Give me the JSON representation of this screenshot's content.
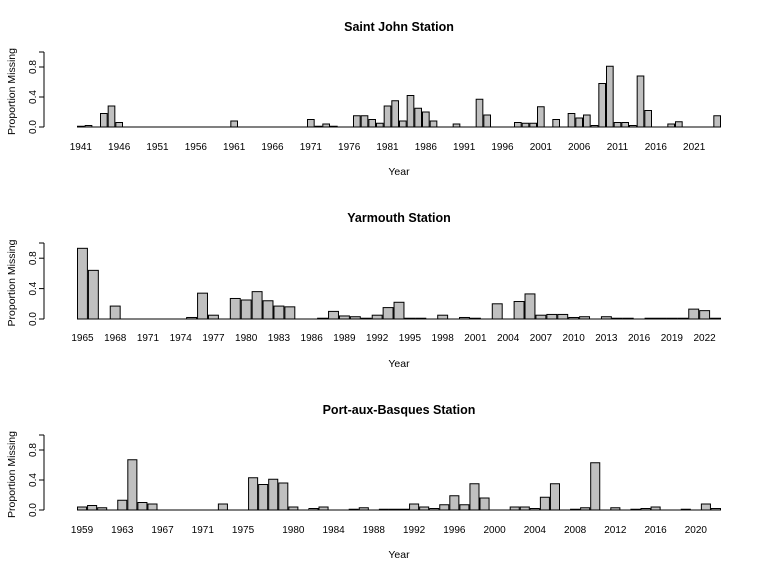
{
  "chart_data": [
    {
      "type": "bar",
      "title": "Saint John Station",
      "xlabel": "Year",
      "ylabel": "Proportion Missing",
      "ylim": [
        0,
        1
      ],
      "yticks": [
        "0.0",
        "0.4",
        "0.8"
      ],
      "ytick_values": [
        0,
        0.4,
        0.8
      ],
      "xtick_labels": [
        "1941",
        "1946",
        "1951",
        "1956",
        "1961",
        "1966",
        "1971",
        "1976",
        "1981",
        "1986",
        "1991",
        "1996",
        "2001",
        "2006",
        "2011",
        "2016",
        "2021"
      ],
      "start_year": 1941,
      "values": [
        0.01,
        0.02,
        0.0,
        0.18,
        0.28,
        0.06,
        0.0,
        0.0,
        0.0,
        0.0,
        0.0,
        0.0,
        0.0,
        0.0,
        0.0,
        0.0,
        0.0,
        0.0,
        0.0,
        0.0,
        0.08,
        0.0,
        0.0,
        0.0,
        0.0,
        0.0,
        0.0,
        0.0,
        0.0,
        0.0,
        0.1,
        0.01,
        0.04,
        0.01,
        0.0,
        0.0,
        0.15,
        0.15,
        0.1,
        0.05,
        0.28,
        0.35,
        0.08,
        0.42,
        0.25,
        0.2,
        0.08,
        0.0,
        0.0,
        0.04,
        0.0,
        0.0,
        0.37,
        0.16,
        0.0,
        0.0,
        0.0,
        0.06,
        0.05,
        0.05,
        0.27,
        0.0,
        0.1,
        0.0,
        0.18,
        0.12,
        0.16,
        0.02,
        0.58,
        0.81,
        0.06,
        0.06,
        0.02,
        0.68,
        0.22,
        0.0,
        0.0,
        0.04,
        0.07,
        0.0,
        0.0,
        0.0,
        0.0,
        0.15
      ]
    },
    {
      "type": "bar",
      "title": "Yarmouth Station",
      "xlabel": "Year",
      "ylabel": "Proportion Missing",
      "ylim": [
        0,
        1
      ],
      "yticks": [
        "0.0",
        "0.4",
        "0.8"
      ],
      "ytick_values": [
        0,
        0.4,
        0.8
      ],
      "xtick_labels": [
        "1965",
        "1968",
        "1971",
        "1974",
        "1977",
        "1980",
        "1983",
        "1986",
        "1989",
        "1992",
        "1995",
        "1998",
        "2001",
        "2004",
        "2007",
        "2010",
        "2013",
        "2016",
        "2019",
        "2022"
      ],
      "start_year": 1965,
      "values": [
        0.93,
        0.64,
        0.0,
        0.17,
        0.0,
        0.0,
        0.0,
        0.0,
        0.0,
        0.0,
        0.02,
        0.34,
        0.05,
        0.0,
        0.27,
        0.25,
        0.36,
        0.24,
        0.17,
        0.16,
        0.0,
        0.0,
        0.01,
        0.1,
        0.04,
        0.03,
        0.01,
        0.05,
        0.15,
        0.22,
        0.01,
        0.01,
        0.0,
        0.05,
        0.0,
        0.02,
        0.01,
        0.0,
        0.2,
        0.0,
        0.23,
        0.33,
        0.05,
        0.06,
        0.06,
        0.02,
        0.03,
        0.0,
        0.03,
        0.01,
        0.01,
        0.0,
        0.01,
        0.01,
        0.01,
        0.01,
        0.13,
        0.11,
        0.01
      ]
    },
    {
      "type": "bar",
      "title": "Port-aux-Basques Station",
      "xlabel": "Year",
      "ylabel": "Proportion Missing",
      "ylim": [
        0,
        1
      ],
      "yticks": [
        "0.0",
        "0.4",
        "0.8"
      ],
      "ytick_values": [
        0,
        0.4,
        0.8
      ],
      "xtick_labels": [
        "1959",
        "1963",
        "1967",
        "1971",
        "1975",
        "1980",
        "1984",
        "1988",
        "1992",
        "1996",
        "2000",
        "2004",
        "2008",
        "2012",
        "2016",
        "2020"
      ],
      "start_year": 1959,
      "values": [
        0.04,
        0.06,
        0.03,
        0.0,
        0.13,
        0.67,
        0.1,
        0.08,
        0.0,
        0.0,
        0.0,
        0.0,
        0.0,
        0.0,
        0.08,
        0.0,
        0.0,
        0.43,
        0.34,
        0.41,
        0.36,
        0.04,
        0.0,
        0.02,
        0.04,
        0.0,
        0.0,
        0.01,
        0.03,
        0.0,
        0.01,
        0.01,
        0.01,
        0.08,
        0.04,
        0.02,
        0.07,
        0.19,
        0.07,
        0.35,
        0.16,
        0.0,
        0.0,
        0.04,
        0.04,
        0.02,
        0.17,
        0.35,
        0.0,
        0.01,
        0.03,
        0.63,
        0.0,
        0.03,
        0.0,
        0.01,
        0.02,
        0.04,
        0.0,
        0.0,
        0.01,
        0.0,
        0.08,
        0.02
      ]
    }
  ]
}
